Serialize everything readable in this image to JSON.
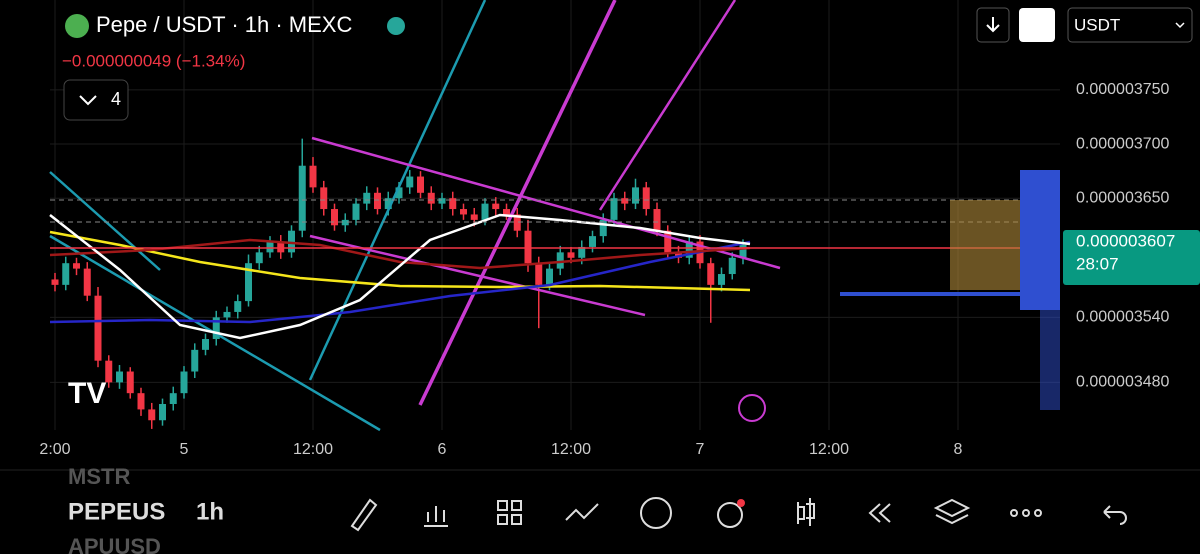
{
  "header": {
    "symbol": "Pepe / USDT · 1h · MEXC",
    "change": "−0.000000049 (−1.34%)",
    "indicators": "4",
    "currency": "USDT"
  },
  "chart_data": {
    "type": "candlestick",
    "open": [
      3.575e-06,
      3.57e-06,
      3.59e-06,
      3.585e-06,
      3.56e-06,
      3.5e-06,
      3.48e-06,
      3.49e-06,
      3.47e-06,
      3.455e-06,
      3.445e-06,
      3.46e-06,
      3.47e-06,
      3.49e-06,
      3.51e-06,
      3.52e-06,
      3.54e-06,
      3.545e-06,
      3.555e-06,
      3.59e-06,
      3.6e-06,
      3.61e-06,
      3.6e-06,
      3.62e-06,
      3.68e-06,
      3.66e-06,
      3.64e-06,
      3.625e-06,
      3.63e-06,
      3.645e-06,
      3.655e-06,
      3.64e-06,
      3.65e-06,
      3.66e-06,
      3.67e-06,
      3.655e-06,
      3.645e-06,
      3.65e-06,
      3.64e-06,
      3.635e-06,
      3.63e-06,
      3.645e-06,
      3.64e-06,
      3.635e-06,
      3.62e-06,
      3.59e-06,
      3.57e-06,
      3.585e-06,
      3.6e-06,
      3.595e-06,
      3.605e-06,
      3.615e-06,
      3.63e-06,
      3.65e-06,
      3.645e-06,
      3.66e-06,
      3.64e-06,
      3.62e-06,
      3.6e-06,
      3.595e-06,
      3.61e-06,
      3.59e-06,
      3.57e-06,
      3.58e-06,
      3.595e-06
    ],
    "high": [
      3.581e-06,
      3.596e-06,
      3.595e-06,
      3.591e-06,
      3.568e-06,
      3.505e-06,
      3.496e-06,
      3.494e-06,
      3.475e-06,
      3.461e-06,
      3.465e-06,
      3.476e-06,
      3.495e-06,
      3.516e-06,
      3.525e-06,
      3.546e-06,
      3.55e-06,
      3.561e-06,
      3.598e-06,
      3.606e-06,
      3.615e-06,
      3.616e-06,
      3.625e-06,
      3.705e-06,
      3.688e-06,
      3.666e-06,
      3.645e-06,
      3.636e-06,
      3.65e-06,
      3.661e-06,
      3.66e-06,
      3.656e-06,
      3.665e-06,
      3.676e-06,
      3.675e-06,
      3.661e-06,
      3.655e-06,
      3.656e-06,
      3.645e-06,
      3.641e-06,
      3.65e-06,
      3.651e-06,
      3.645e-06,
      3.641e-06,
      3.63e-06,
      3.596e-06,
      3.59e-06,
      3.606e-06,
      3.605e-06,
      3.611e-06,
      3.62e-06,
      3.636e-06,
      3.655e-06,
      3.656e-06,
      3.668e-06,
      3.665e-06,
      3.646e-06,
      3.625e-06,
      3.606e-06,
      3.615e-06,
      3.616e-06,
      3.595e-06,
      3.586e-06,
      3.6e-06,
      3.612e-06
    ],
    "low": [
      3.564e-06,
      3.565e-06,
      3.579e-06,
      3.555e-06,
      3.494e-06,
      3.475e-06,
      3.474e-06,
      3.465e-06,
      3.449e-06,
      3.437e-06,
      3.44e-06,
      3.454e-06,
      3.465e-06,
      3.484e-06,
      3.505e-06,
      3.514e-06,
      3.535e-06,
      3.539e-06,
      3.55e-06,
      3.584e-06,
      3.595e-06,
      3.594e-06,
      3.595e-06,
      3.614e-06,
      3.655e-06,
      3.634e-06,
      3.62e-06,
      3.619e-06,
      3.625e-06,
      3.639e-06,
      3.635e-06,
      3.634e-06,
      3.645e-06,
      3.654e-06,
      3.65e-06,
      3.639e-06,
      3.64e-06,
      3.634e-06,
      3.63e-06,
      3.624e-06,
      3.625e-06,
      3.634e-06,
      3.63e-06,
      3.614e-06,
      3.582e-06,
      3.53e-06,
      3.565e-06,
      3.579e-06,
      3.59e-06,
      3.589e-06,
      3.6e-06,
      3.609e-06,
      3.625e-06,
      3.639e-06,
      3.64e-06,
      3.634e-06,
      3.615e-06,
      3.594e-06,
      3.59e-06,
      3.589e-06,
      3.585e-06,
      3.535e-06,
      3.564e-06,
      3.575e-06,
      3.589e-06
    ],
    "close": [
      3.57e-06,
      3.59e-06,
      3.585e-06,
      3.56e-06,
      3.5e-06,
      3.48e-06,
      3.49e-06,
      3.47e-06,
      3.455e-06,
      3.445e-06,
      3.46e-06,
      3.47e-06,
      3.49e-06,
      3.51e-06,
      3.52e-06,
      3.54e-06,
      3.545e-06,
      3.555e-06,
      3.59e-06,
      3.6e-06,
      3.61e-06,
      3.6e-06,
      3.62e-06,
      3.68e-06,
      3.66e-06,
      3.64e-06,
      3.625e-06,
      3.63e-06,
      3.645e-06,
      3.655e-06,
      3.64e-06,
      3.65e-06,
      3.66e-06,
      3.67e-06,
      3.655e-06,
      3.645e-06,
      3.65e-06,
      3.64e-06,
      3.635e-06,
      3.63e-06,
      3.645e-06,
      3.64e-06,
      3.635e-06,
      3.62e-06,
      3.59e-06,
      3.57e-06,
      3.585e-06,
      3.6e-06,
      3.595e-06,
      3.605e-06,
      3.615e-06,
      3.63e-06,
      3.65e-06,
      3.645e-06,
      3.66e-06,
      3.64e-06,
      3.62e-06,
      3.6e-06,
      3.595e-06,
      3.61e-06,
      3.59e-06,
      3.57e-06,
      3.58e-06,
      3.595e-06,
      3.607e-06
    ],
    "up_color": "#26a69a",
    "down_color": "#f23645",
    "ylim": [
      3.436e-06,
      3.833e-06
    ],
    "yticks": [
      {
        "value": 3.75e-06,
        "label": "0.000003750"
      },
      {
        "value": 3.7e-06,
        "label": "0.000003700"
      },
      {
        "value": 3.65e-06,
        "label": "0.000003650"
      },
      {
        "value": 3.54e-06,
        "label": "0.000003540"
      },
      {
        "value": 3.48e-06,
        "label": "0.000003480"
      }
    ],
    "time_labels": [
      "2:00",
      "5",
      "12:00",
      "6",
      "12:00",
      "7",
      "12:00",
      "8"
    ],
    "last_price": {
      "value": 3.607e-06,
      "label": "0.000003607"
    },
    "countdown": "28:07"
  },
  "toolbar": {
    "symbols": [
      "MSTR",
      "PEPEUS",
      "APUUSD"
    ],
    "interval": "1h"
  }
}
